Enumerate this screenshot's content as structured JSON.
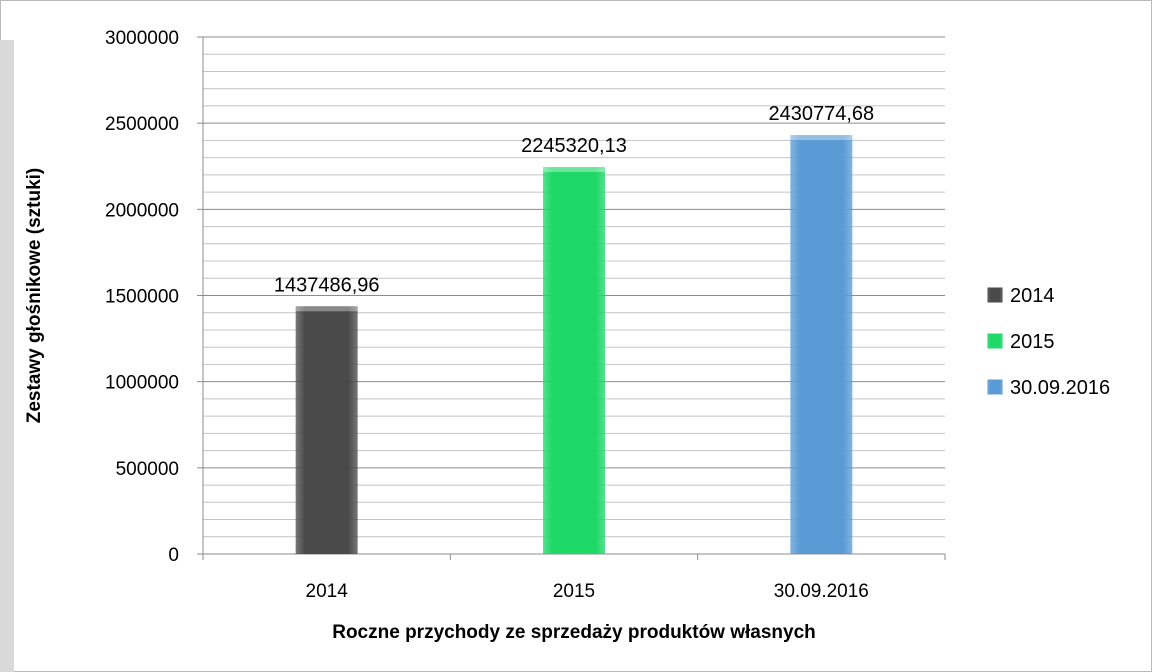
{
  "chart_data": {
    "type": "bar",
    "categories": [
      "2014",
      "2015",
      "30.09.2016"
    ],
    "values": [
      1437486.96,
      2245320.13,
      2430774.68
    ],
    "data_labels": [
      "1437486,96",
      "2245320,13",
      "2430774,68"
    ],
    "colors": [
      "#4a4a4a",
      "#1ed868",
      "#5b9bd5"
    ],
    "ylim": [
      0,
      3000000
    ],
    "yticks": [
      0,
      500000,
      1000000,
      1500000,
      2000000,
      2500000,
      3000000
    ],
    "ytick_labels": [
      "0",
      "500000",
      "1000000",
      "1500000",
      "2000000",
      "2500000",
      "3000000"
    ],
    "minor_gridlines": true,
    "xlabel": "Roczne przychody ze sprzedaży produktów własnych",
    "ylabel": "Zestawy głośnikowe (sztuki)",
    "legend": {
      "position": "right",
      "entries": [
        "2014",
        "2015",
        "30.09.2016"
      ]
    }
  }
}
